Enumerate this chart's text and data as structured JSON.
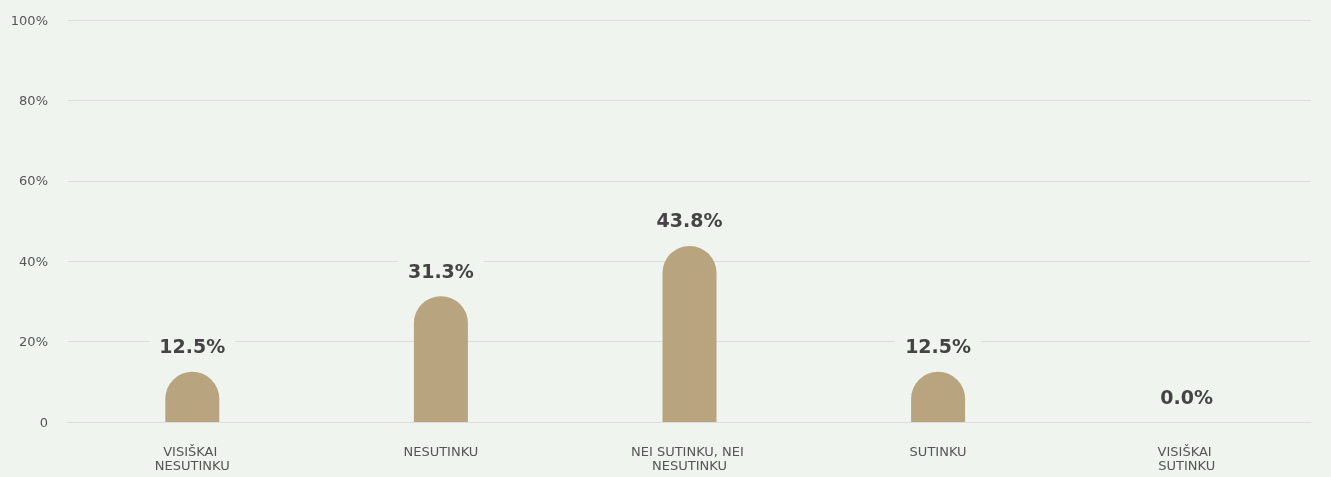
{
  "chart_data": {
    "type": "bar",
    "categories": [
      "VISIŠKAI NESUTINKU",
      "NESUTINKU",
      "NEI SUTINKU, NEI NESUTINKU",
      "SUTINKU",
      "VISIŠKAI SUTINKU"
    ],
    "values": [
      12.5,
      31.3,
      43.8,
      12.5,
      0
    ],
    "value_labels": [
      "12.5%",
      "31.3%",
      "43.8%",
      "12.5%",
      "0.0%"
    ],
    "color": "#b8a47e",
    "ylim": [
      0,
      100
    ],
    "yticks": [
      0,
      {
        "value": 20,
        "label": "20%"
      },
      {
        "value": 40,
        "label": "40%"
      },
      {
        "value": 60,
        "label": "60%"
      },
      {
        "value": 80,
        "label": "80%"
      },
      {
        "value": 100,
        "label": "100%"
      }
    ],
    "grid": "y"
  }
}
